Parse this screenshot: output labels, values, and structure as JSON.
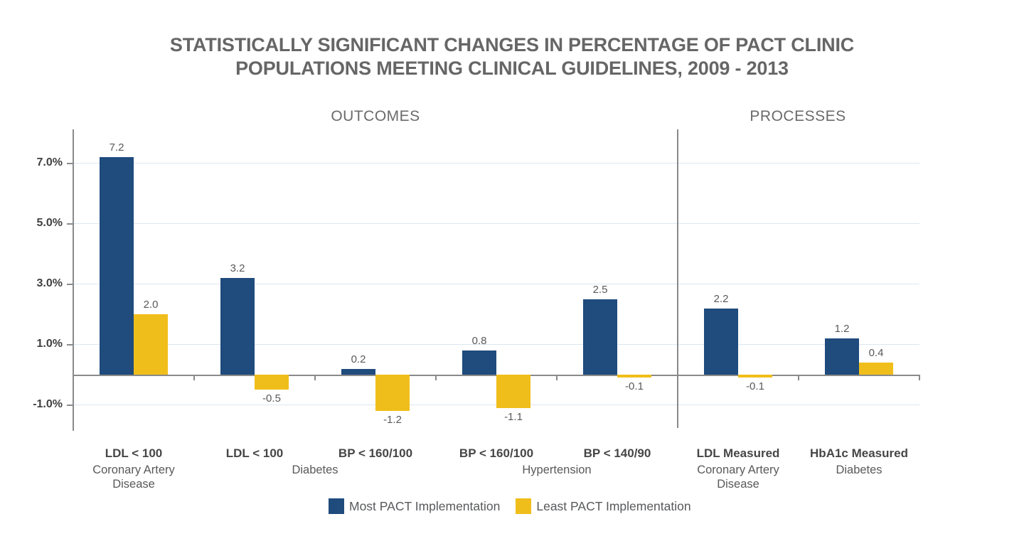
{
  "title": {
    "line1": "STATISTICALLY SIGNIFICANT CHANGES IN PERCENTAGE OF PACT CLINIC",
    "line2": "POPULATIONS MEETING CLINICAL GUIDELINES, 2009 - 2013"
  },
  "colors": {
    "most_series": "#1F4B7D",
    "least_series": "#F0BE1B",
    "gridline": "#dce7f1",
    "axis": "#8a8a8a",
    "title_text": "#666666",
    "label_text": "#595959"
  },
  "chart_data": {
    "type": "bar",
    "title": "STATISTICALLY SIGNIFICANT CHANGES IN PERCENTAGE OF PACT CLINIC POPULATIONS MEETING CLINICAL GUIDELINES, 2009 - 2013",
    "sections": [
      {
        "label": "OUTCOMES",
        "group_indices": [
          0,
          1,
          2,
          3,
          4
        ]
      },
      {
        "label": "PROCESSES",
        "group_indices": [
          5,
          6
        ]
      }
    ],
    "categories": [
      "LDL < 100",
      "LDL < 100",
      "BP < 160/100",
      "BP < 160/100",
      "BP < 140/90",
      "LDL Measured",
      "HbA1c Measured"
    ],
    "condition_labels": [
      {
        "label": "Coronary Artery\nDisease",
        "groups": [
          0
        ]
      },
      {
        "label": "Diabetes",
        "groups": [
          1,
          2
        ]
      },
      {
        "label": "Hypertension",
        "groups": [
          3,
          4
        ]
      },
      {
        "label": "Coronary Artery\nDisease",
        "groups": [
          5
        ]
      },
      {
        "label": "Diabetes",
        "groups": [
          6
        ]
      }
    ],
    "series": [
      {
        "name": "Most PACT Implementation",
        "color": "#1F4B7D",
        "values": [
          7.2,
          3.2,
          0.2,
          0.8,
          2.5,
          2.2,
          1.2
        ]
      },
      {
        "name": "Least PACT Implementation",
        "color": "#F0BE1B",
        "values": [
          2.0,
          -0.5,
          -1.2,
          -1.1,
          -0.1,
          -0.1,
          0.4
        ]
      }
    ],
    "data_labels": [
      [
        "7.2",
        "3.2",
        "0.2",
        "0.8",
        "2.5",
        "2.2",
        "1.2"
      ],
      [
        "2.0",
        "-0.5",
        "-1.2",
        "-1.1",
        "-0.1",
        "-0.1",
        "0.4"
      ]
    ],
    "y_axis": {
      "tick_labels": [
        "7.0%",
        "5.0%",
        "3.0%",
        "1.0%",
        "-1.0%"
      ],
      "tick_values": [
        7,
        5,
        3,
        1,
        -1
      ],
      "ylim": [
        -2,
        8.1
      ]
    },
    "grid": true,
    "legend_position": "bottom-center"
  },
  "legend": [
    {
      "label": "Most PACT Implementation",
      "color": "#1F4B7D"
    },
    {
      "label": "Least PACT Implementation",
      "color": "#F0BE1B"
    }
  ]
}
